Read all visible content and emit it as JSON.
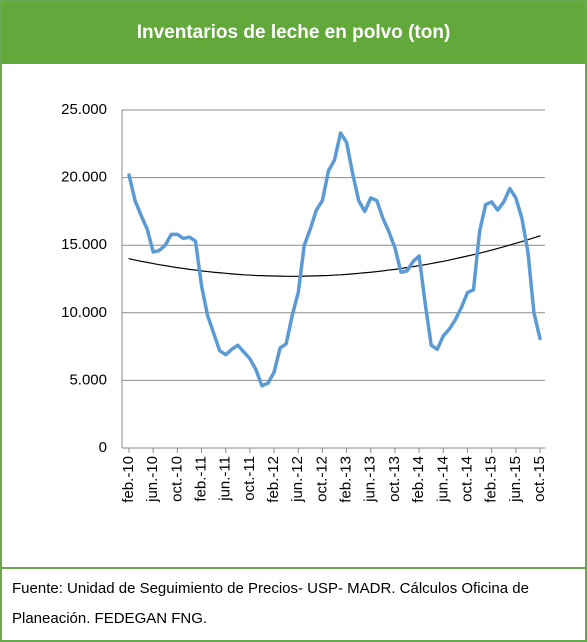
{
  "chart_data": {
    "type": "line",
    "title": "Inventarios de leche en polvo (ton)",
    "source": "Fuente:  Unidad de Seguimiento de Precios- USP- MADR. Cálculos Oficina de Planeación. FEDEGAN FNG.",
    "categories": [
      "feb.-10",
      null,
      null,
      null,
      "jun.-10",
      null,
      null,
      null,
      "oct.-10",
      null,
      null,
      null,
      "feb.-11",
      null,
      null,
      null,
      "jun.-11",
      null,
      null,
      null,
      "oct.-11",
      null,
      null,
      null,
      "feb.-12",
      null,
      null,
      null,
      "jun.-12",
      null,
      null,
      null,
      "oct.-12",
      null,
      null,
      null,
      "feb.-13",
      null,
      null,
      null,
      "jun.-13",
      null,
      null,
      null,
      "oct.-13",
      null,
      null,
      null,
      "feb.-14",
      null,
      null,
      null,
      "jun.-14",
      null,
      null,
      null,
      "oct.-14",
      null,
      null,
      null,
      "feb.-15",
      null,
      null,
      null,
      "jun.-15",
      null,
      null,
      null,
      "oct.-15"
    ],
    "series": [
      {
        "color": "#5b9bd5",
        "values": [
          20200,
          18300,
          17200,
          16200,
          14500,
          14600,
          15000,
          15800,
          15800,
          15500,
          15600,
          15300,
          12000,
          9800,
          8500,
          7200,
          6900,
          7300,
          7600,
          7100,
          6600,
          5800,
          4600,
          4800,
          5600,
          7400,
          7700,
          9800,
          11500,
          15000,
          16200,
          17600,
          18300,
          20500,
          21300,
          23300,
          22600,
          20300,
          18300,
          17500,
          18500,
          18300,
          17000,
          16000,
          14800,
          13000,
          13100,
          13800,
          14200,
          10700,
          7600,
          7300,
          8300,
          8800,
          9500,
          10400,
          11500,
          11700,
          16000,
          18000,
          18200,
          17600,
          18200,
          19200,
          18500,
          17000,
          14500,
          10000,
          8100
        ]
      },
      {
        "color": "#000000",
        "values": [
          14000,
          13900,
          13810,
          13730,
          13640,
          13560,
          13490,
          13410,
          13340,
          13280,
          13210,
          13160,
          13100,
          13050,
          13000,
          12960,
          12920,
          12880,
          12840,
          12810,
          12790,
          12760,
          12750,
          12730,
          12720,
          12710,
          12700,
          12700,
          12700,
          12710,
          12720,
          12730,
          12750,
          12760,
          12790,
          12810,
          12840,
          12880,
          12920,
          12960,
          13000,
          13050,
          13100,
          13160,
          13210,
          13280,
          13340,
          13410,
          13490,
          13560,
          13640,
          13730,
          13810,
          13900,
          14000,
          14100,
          14200,
          14300,
          14410,
          14520,
          14640,
          14760,
          14880,
          15010,
          15140,
          15270,
          15410,
          15550,
          15690
        ]
      }
    ],
    "ylim": [
      0,
      25000
    ],
    "yticks": [
      0,
      {
        "value": 5000,
        "label": "5.000"
      },
      {
        "value": 10000,
        "label": "10.000"
      },
      {
        "value": 15000,
        "label": "15.000"
      },
      {
        "value": 20000,
        "label": "20.000"
      },
      {
        "value": 25000,
        "label": "25.000"
      }
    ],
    "grid": true
  }
}
